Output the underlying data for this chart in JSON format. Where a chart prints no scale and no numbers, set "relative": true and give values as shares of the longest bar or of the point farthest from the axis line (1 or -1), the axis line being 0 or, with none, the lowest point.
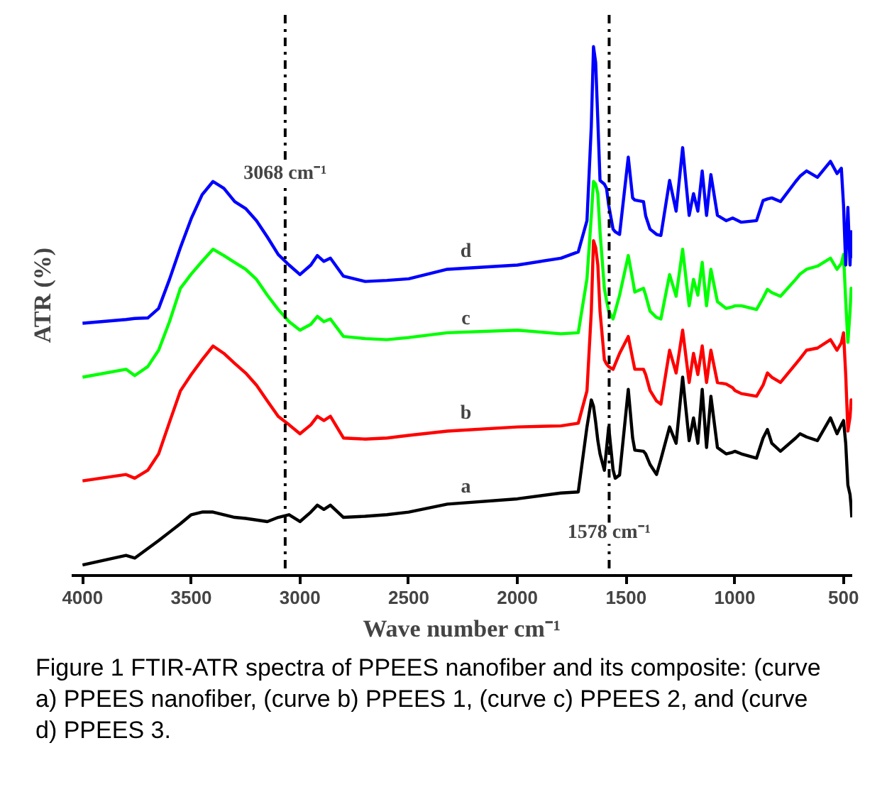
{
  "chart_data": {
    "type": "line",
    "relative": true,
    "xlabel": "Wave number cm⁻¹",
    "ylabel": "ATR (%)",
    "xlim": [
      4050,
      460
    ],
    "xticks": [
      4000,
      3500,
      3000,
      2500,
      2000,
      1500,
      1000,
      500
    ],
    "grid": false,
    "x": [
      4000,
      3800,
      3760,
      3700,
      3650,
      3600,
      3550,
      3500,
      3450,
      3400,
      3350,
      3300,
      3250,
      3200,
      3150,
      3100,
      3050,
      3000,
      2950,
      2920,
      2890,
      2860,
      2800,
      2700,
      2600,
      2500,
      2322,
      2000,
      1800,
      1720,
      1680,
      1660,
      1650,
      1640,
      1630,
      1620,
      1600,
      1590,
      1580,
      1560,
      1550,
      1530,
      1490,
      1470,
      1460,
      1420,
      1410,
      1390,
      1360,
      1340,
      1300,
      1270,
      1240,
      1210,
      1190,
      1170,
      1150,
      1130,
      1110,
      1080,
      1040,
      1010,
      1000,
      970,
      900,
      870,
      850,
      830,
      790,
      720,
      700,
      670,
      620,
      560,
      530,
      510,
      500,
      490,
      480,
      470,
      465,
      462
    ],
    "series": [
      {
        "color": "#000000",
        "values": [
          0.02,
          0.038,
          0.033,
          0.051,
          0.066,
          0.082,
          0.098,
          0.115,
          0.12,
          0.12,
          0.115,
          0.11,
          0.108,
          0.105,
          0.102,
          0.11,
          0.115,
          0.102,
          0.12,
          0.133,
          0.125,
          0.133,
          0.11,
          0.112,
          0.115,
          0.12,
          0.135,
          0.145,
          0.156,
          0.158,
          0.281,
          0.332,
          0.32,
          0.29,
          0.255,
          0.23,
          0.199,
          0.24,
          0.281,
          0.2,
          0.184,
          0.19,
          0.352,
          0.26,
          0.237,
          0.235,
          0.23,
          0.21,
          0.191,
          0.22,
          0.281,
          0.25,
          0.375,
          0.255,
          0.298,
          0.25,
          0.352,
          0.242,
          0.339,
          0.242,
          0.23,
          0.233,
          0.235,
          0.23,
          0.222,
          0.26,
          0.276,
          0.25,
          0.235,
          0.26,
          0.268,
          0.262,
          0.255,
          0.298,
          0.268,
          0.285,
          0.293,
          0.25,
          0.171,
          0.153,
          0.13,
          0.11
        ]
      },
      {
        "color": "#ff0000",
        "values": [
          0.179,
          0.191,
          0.184,
          0.199,
          0.23,
          0.29,
          0.349,
          0.38,
          0.408,
          0.434,
          0.42,
          0.401,
          0.383,
          0.36,
          0.33,
          0.301,
          0.285,
          0.268,
          0.285,
          0.301,
          0.293,
          0.301,
          0.26,
          0.258,
          0.26,
          0.265,
          0.273,
          0.281,
          0.283,
          0.288,
          0.349,
          0.5,
          0.633,
          0.62,
          0.587,
          0.5,
          0.408,
          0.4,
          0.395,
          0.39,
          0.4,
          0.42,
          0.452,
          0.41,
          0.39,
          0.39,
          0.38,
          0.35,
          0.33,
          0.324,
          0.426,
          0.383,
          0.464,
          0.365,
          0.42,
          0.38,
          0.434,
          0.365,
          0.426,
          0.365,
          0.362,
          0.355,
          0.35,
          0.344,
          0.339,
          0.36,
          0.383,
          0.375,
          0.365,
          0.4,
          0.41,
          0.426,
          0.43,
          0.446,
          0.426,
          0.44,
          0.459,
          0.38,
          0.273,
          0.3,
          0.332,
          0.32
        ]
      },
      {
        "color": "#00ff00",
        "values": [
          0.375,
          0.39,
          0.378,
          0.395,
          0.426,
          0.48,
          0.543,
          0.57,
          0.594,
          0.617,
          0.605,
          0.592,
          0.579,
          0.56,
          0.53,
          0.503,
          0.48,
          0.464,
          0.475,
          0.49,
          0.48,
          0.485,
          0.452,
          0.448,
          0.446,
          0.45,
          0.459,
          0.464,
          0.457,
          0.459,
          0.561,
          0.68,
          0.745,
          0.74,
          0.722,
          0.65,
          0.543,
          0.52,
          0.5,
          0.485,
          0.5,
          0.53,
          0.605,
          0.56,
          0.536,
          0.543,
          0.53,
          0.5,
          0.488,
          0.485,
          0.569,
          0.528,
          0.617,
          0.51,
          0.56,
          0.53,
          0.592,
          0.51,
          0.579,
          0.518,
          0.505,
          0.508,
          0.51,
          0.51,
          0.503,
          0.525,
          0.541,
          0.535,
          0.528,
          0.56,
          0.57,
          0.579,
          0.585,
          0.6,
          0.579,
          0.59,
          0.607,
          0.52,
          0.441,
          0.5,
          0.543,
          0.54
        ]
      },
      {
        "color": "#0000ff",
        "values": [
          0.477,
          0.484,
          0.486,
          0.487,
          0.505,
          0.56,
          0.62,
          0.675,
          0.72,
          0.745,
          0.732,
          0.707,
          0.694,
          0.671,
          0.64,
          0.607,
          0.587,
          0.569,
          0.587,
          0.605,
          0.594,
          0.6,
          0.566,
          0.556,
          0.558,
          0.561,
          0.579,
          0.587,
          0.6,
          0.612,
          0.671,
          0.85,
          1,
          0.97,
          0.86,
          0.747,
          0.74,
          0.732,
          0.7,
          0.655,
          0.65,
          0.645,
          0.791,
          0.714,
          0.71,
          0.707,
          0.68,
          0.655,
          0.645,
          0.643,
          0.747,
          0.689,
          0.809,
          0.681,
          0.722,
          0.689,
          0.765,
          0.681,
          0.758,
          0.681,
          0.671,
          0.676,
          0.674,
          0.668,
          0.671,
          0.709,
          0.712,
          0.714,
          0.707,
          0.745,
          0.755,
          0.765,
          0.753,
          0.783,
          0.76,
          0.77,
          0.7,
          0.587,
          0.696,
          0.587,
          0.65,
          0.6
        ]
      }
    ],
    "ref_lines": [
      {
        "axis": "x",
        "value": 3068,
        "line_style": "dashdot"
      },
      {
        "axis": "x",
        "value": 1578,
        "line_style": "dashdot"
      }
    ],
    "annotations": [
      {
        "text": "3068 cm⁻¹",
        "x": 3068,
        "y": 0.76
      },
      {
        "text": "1578 cm⁻¹",
        "x": 1578,
        "y": 0.08
      },
      {
        "text": "d",
        "x": 2237,
        "y": 0.612
      },
      {
        "text": "c",
        "x": 2237,
        "y": 0.485
      },
      {
        "text": "b",
        "x": 2237,
        "y": 0.306
      },
      {
        "text": "a",
        "x": 2237,
        "y": 0.166
      },
      "Figure 1 FTIR-ATR spectra of PPEES nanofiber and its composite: (curve a) PPEES nanofiber, (curve b) PPEES 1, (curve c) PPEES 2, and (curve d) PPEES 3."
    ]
  }
}
